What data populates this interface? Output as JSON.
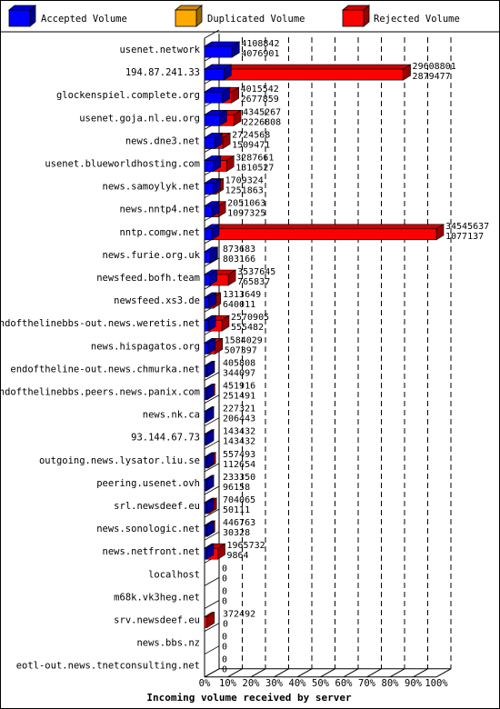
{
  "chart_data": {
    "type": "bar",
    "orientation": "horizontal",
    "stacking": "overlaid",
    "xlabel": "Incoming volume received by server",
    "x_ticks": [
      "0%",
      "10%",
      "20%",
      "30%",
      "40%",
      "50%",
      "60%",
      "70%",
      "80%",
      "90%",
      "100%"
    ],
    "xlim": [
      0,
      100
    ],
    "legend": {
      "position": "top",
      "items": [
        {
          "label": "Accepted Volume",
          "color": "#0000ff"
        },
        {
          "label": "Duplicated Volume",
          "color": "#ffaa00"
        },
        {
          "label": "Rejected Volume",
          "color": "#ff0000"
        }
      ]
    },
    "max_value": 34545637,
    "categories": [
      {
        "name": "usenet.network",
        "total": 4108842,
        "accepted": 4076901
      },
      {
        "name": "194.87.241.33",
        "total": 29608801,
        "accepted": 2879477
      },
      {
        "name": "glockenspiel.complete.org",
        "total": 4015542,
        "accepted": 2677859
      },
      {
        "name": "usenet.goja.nl.eu.org",
        "total": 4345267,
        "accepted": 2226808
      },
      {
        "name": "news.dne3.net",
        "total": 2724568,
        "accepted": 1509471
      },
      {
        "name": "usenet.blueworldhosting.com",
        "total": 3287661,
        "accepted": 1310527
      },
      {
        "name": "news.samoylyk.net",
        "total": 1709324,
        "accepted": 1251863
      },
      {
        "name": "news.nntp4.net",
        "total": 2051063,
        "accepted": 1097325
      },
      {
        "name": "nntp.comgw.net",
        "total": 34545637,
        "accepted": 1077137
      },
      {
        "name": "news.furie.org.uk",
        "total": 873683,
        "accepted": 803166
      },
      {
        "name": "newsfeed.bofh.team",
        "total": 3537645,
        "accepted": 765837
      },
      {
        "name": "newsfeed.xs3.de",
        "total": 1313649,
        "accepted": 640011
      },
      {
        "name": "endofthelinebbs-out.news.weretis.net",
        "total": 2570905,
        "accepted": 555482
      },
      {
        "name": "news.hispagatos.org",
        "total": 1584029,
        "accepted": 507397
      },
      {
        "name": "endoftheline-out.news.chmurka.net",
        "total": 405808,
        "accepted": 344097
      },
      {
        "name": "endofthelinebbs.peers.news.panix.com",
        "total": 451916,
        "accepted": 251491
      },
      {
        "name": "news.nk.ca",
        "total": 227321,
        "accepted": 206443
      },
      {
        "name": "93.144.67.73",
        "total": 143432,
        "accepted": 143432
      },
      {
        "name": "outgoing.news.lysator.liu.se",
        "total": 557493,
        "accepted": 112654
      },
      {
        "name": "peering.usenet.ovh",
        "total": 233350,
        "accepted": 96158
      },
      {
        "name": "srl.newsdeef.eu",
        "total": 704065,
        "accepted": 50111
      },
      {
        "name": "news.sonologic.net",
        "total": 446763,
        "accepted": 30328
      },
      {
        "name": "news.netfront.net",
        "total": 1965732,
        "accepted": 9864
      },
      {
        "name": "localhost",
        "total": 0,
        "accepted": 0
      },
      {
        "name": "m68k.vk3heg.net",
        "total": 0,
        "accepted": 0
      },
      {
        "name": "srv.newsdeef.eu",
        "total": 372492,
        "accepted": 0
      },
      {
        "name": "news.bbs.nz",
        "total": 0,
        "accepted": 0
      },
      {
        "name": "eotl-out.news.tnetconsulting.net",
        "total": 0,
        "accepted": 0
      }
    ]
  }
}
